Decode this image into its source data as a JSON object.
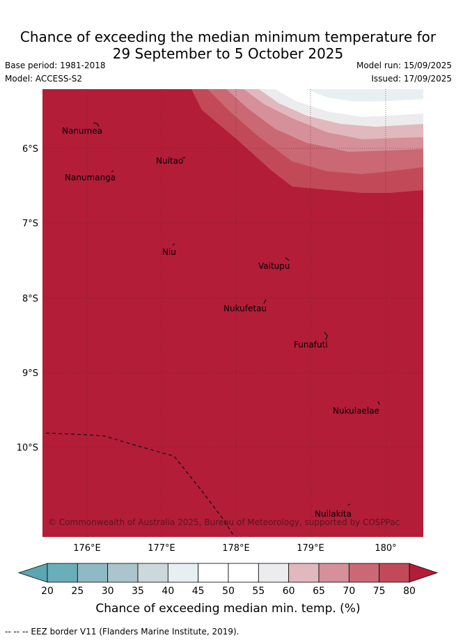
{
  "title_line1": "Chance of exceeding the median minimum temperature for",
  "title_line2": "29 September to 5 October 2025",
  "base_period": "Base period: 1981-2018",
  "model": "Model: ACCESS-S2",
  "model_run": "Model run: 15/09/2025",
  "issued": "Issued: 17/09/2025",
  "map": {
    "lon_labels": [
      "176°E",
      "177°E",
      "178°E",
      "179°E",
      "180°"
    ],
    "lat_labels": [
      "6°S",
      "7°S",
      "8°S",
      "9°S",
      "10°S"
    ],
    "islands": [
      {
        "name": "Nanumea"
      },
      {
        "name": "Nuitao"
      },
      {
        "name": "Nanumanga"
      },
      {
        "name": "Niu"
      },
      {
        "name": "Vaitupu"
      },
      {
        "name": "Nukufetau"
      },
      {
        "name": "Funafuti"
      },
      {
        "name": "Nukulaelae"
      },
      {
        "name": "Nuilakita"
      }
    ],
    "copyright": "© Commonwealth of Australia 2025, Bureau of Meteorology, supported by COSPPac",
    "colors": {
      "c80": "#b31d38",
      "c75": "#c24a58",
      "c70": "#ca6873",
      "c65": "#d69099",
      "c60": "#e1b8bd",
      "c55": "#ececee",
      "c50": "#ffffff",
      "c40": "#e8eff2"
    }
  },
  "colorbar": {
    "ticks": [
      "20",
      "25",
      "30",
      "35",
      "40",
      "45",
      "50",
      "55",
      "60",
      "65",
      "70",
      "75",
      "80"
    ],
    "colors": [
      "#6aaeb9",
      "#8fb9c4",
      "#aac5cb",
      "#cbd9dc",
      "#e8eff2",
      "#ffffff",
      "#ffffff",
      "#ececee",
      "#e1b8bd",
      "#d69099",
      "#ca6873",
      "#c24a58"
    ],
    "low_arrow_color": "#5aa6b2",
    "high_arrow_color": "#b31d38",
    "label": "Chance of exceeding median min. temp. (%)"
  },
  "footnote": "--  --  -- EEZ border V11 (Flanders Marine Institute, 2019)."
}
